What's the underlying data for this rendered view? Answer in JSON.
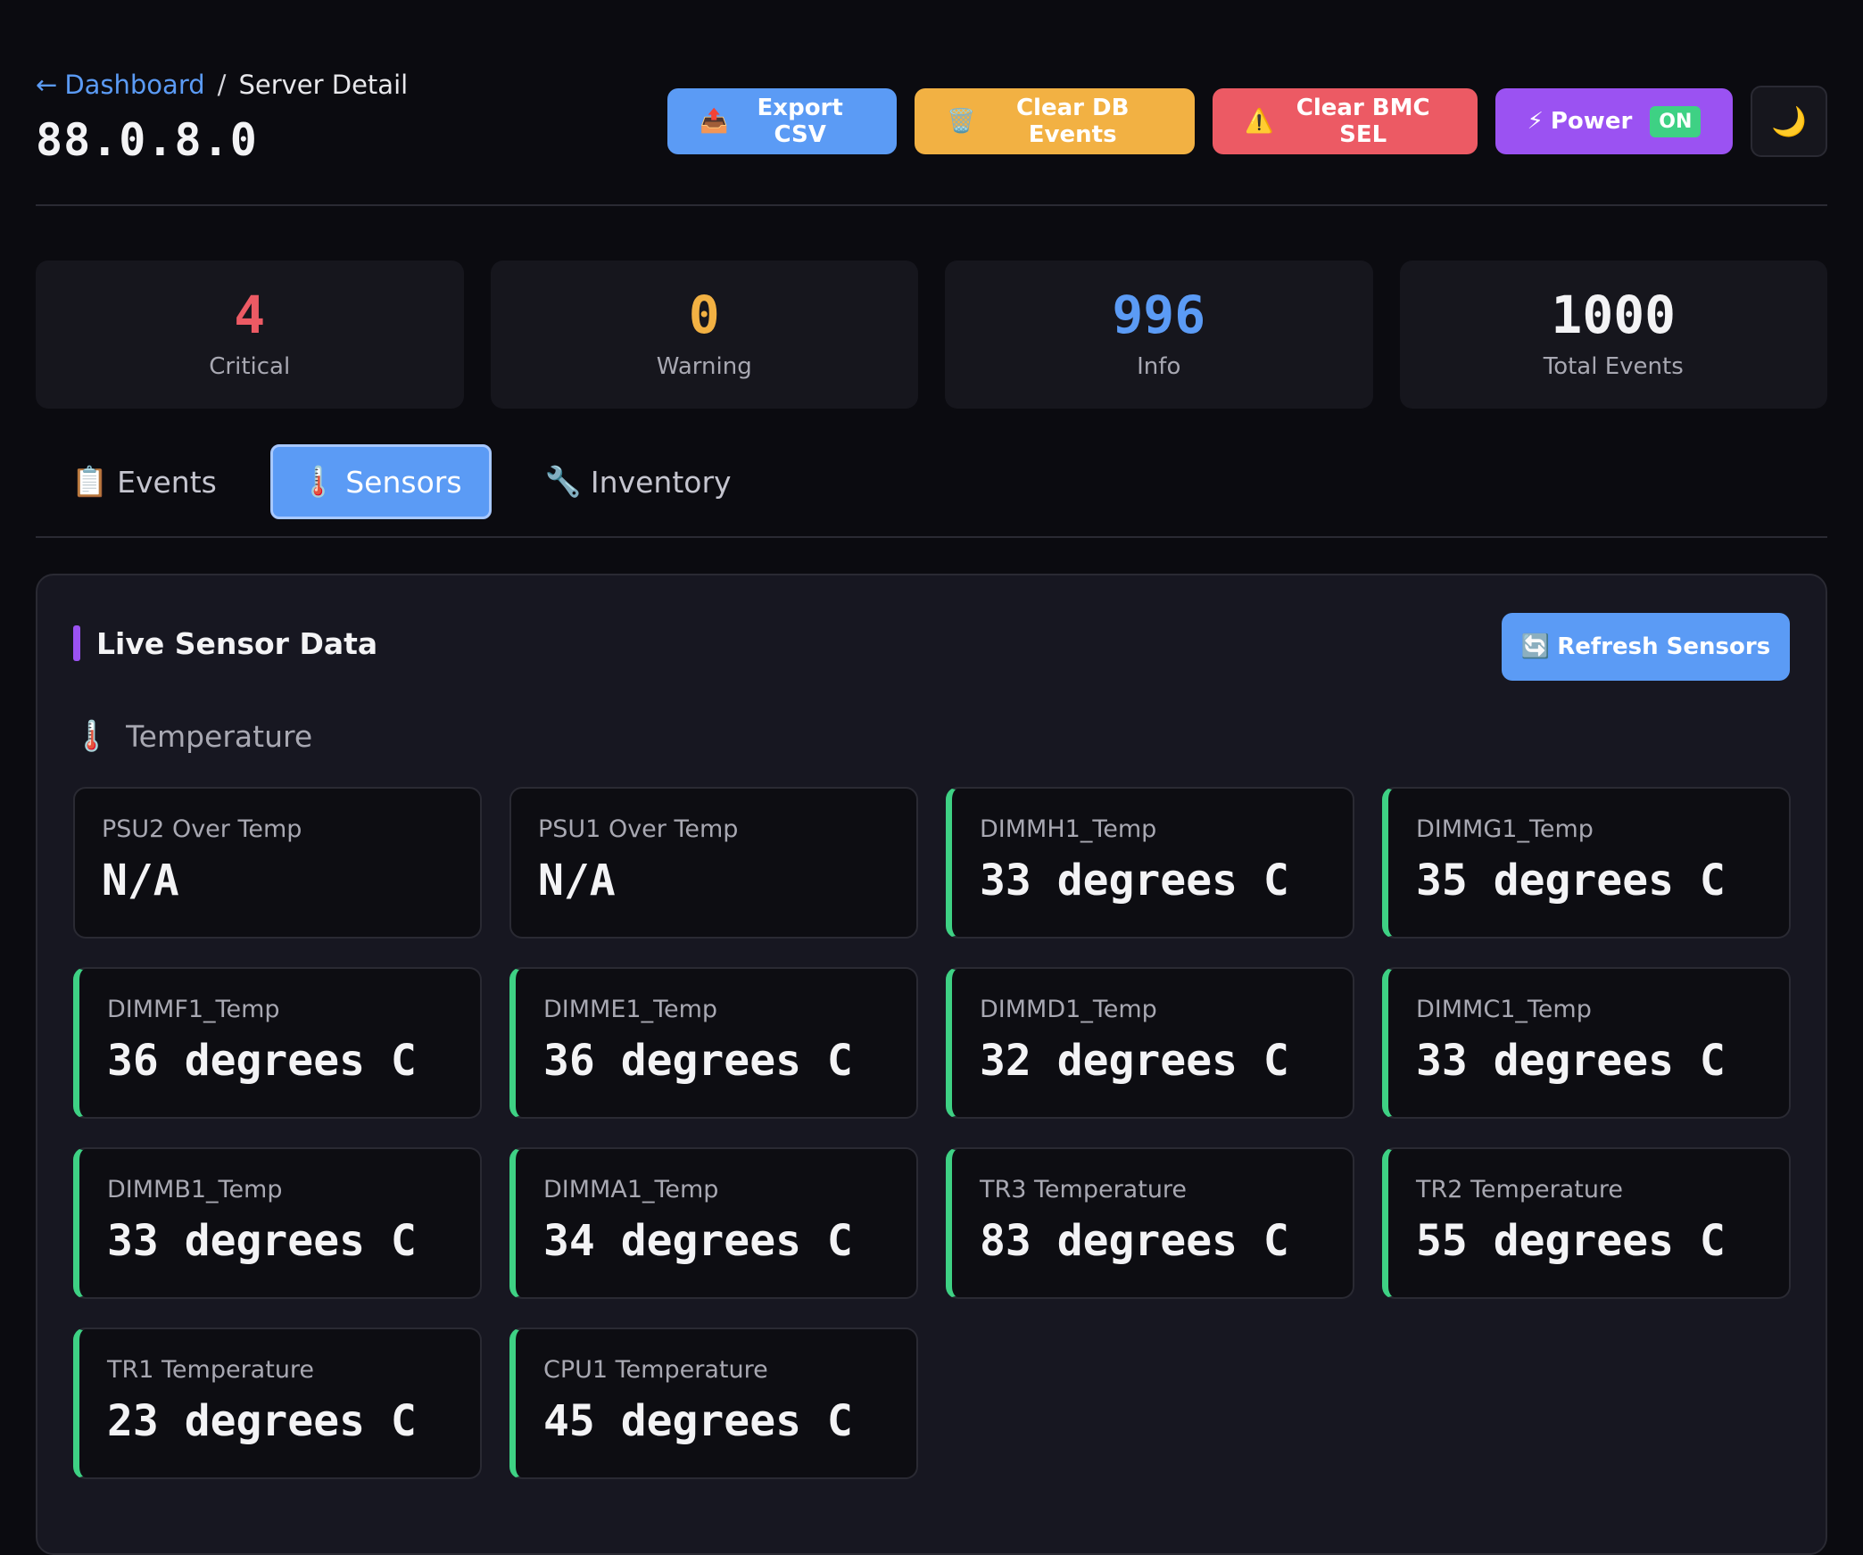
{
  "breadcrumb": {
    "back_icon": "arrow-left-icon",
    "back_arrow": "←",
    "dashboard_label": "Dashboard",
    "separator": "/",
    "current": "Server Detail"
  },
  "page_title": "88.0.8.0",
  "actions": {
    "export_icon": "📤",
    "export_label": "Export CSV",
    "clear_db_icon": "🗑️",
    "clear_db_label": "Clear DB Events",
    "clear_sel_icon": "⚠️",
    "clear_sel_label": "Clear BMC SEL",
    "power_icon": "⚡",
    "power_label": "Power",
    "power_state": "ON",
    "theme_icon": "🌙"
  },
  "stats": [
    {
      "value": "4",
      "label": "Critical",
      "color": "#ec5a64"
    },
    {
      "value": "0",
      "label": "Warning",
      "color": "#f2b143"
    },
    {
      "value": "996",
      "label": "Info",
      "color": "#5b9bf5"
    },
    {
      "value": "1000",
      "label": "Total Events",
      "color": "#f3f3f5"
    }
  ],
  "tabs": [
    {
      "icon": "📋",
      "label": "Events"
    },
    {
      "icon": "🌡️",
      "label": "Sensors"
    },
    {
      "icon": "🔧",
      "label": "Inventory"
    }
  ],
  "panel": {
    "title": "Live Sensor Data",
    "refresh_icon": "🔄",
    "refresh_label": "Refresh Sensors",
    "section_icon": "🌡️",
    "section_label": "Temperature"
  },
  "sensors": [
    {
      "name": "PSU2 Over Temp",
      "value": "N/A"
    },
    {
      "name": "PSU1 Over Temp",
      "value": "N/A"
    },
    {
      "name": "DIMMH1_Temp",
      "value": "33 degrees C"
    },
    {
      "name": "DIMMG1_Temp",
      "value": "35 degrees C"
    },
    {
      "name": "DIMMF1_Temp",
      "value": "36 degrees C"
    },
    {
      "name": "DIMME1_Temp",
      "value": "36 degrees C"
    },
    {
      "name": "DIMMD1_Temp",
      "value": "32 degrees C"
    },
    {
      "name": "DIMMC1_Temp",
      "value": "33 degrees C"
    },
    {
      "name": "DIMMB1_Temp",
      "value": "33 degrees C"
    },
    {
      "name": "DIMMA1_Temp",
      "value": "34 degrees C"
    },
    {
      "name": "TR3 Temperature",
      "value": "83 degrees C"
    },
    {
      "name": "TR2 Temperature",
      "value": "55 degrees C"
    },
    {
      "name": "TR1 Temperature",
      "value": "23 degrees C"
    },
    {
      "name": "CPU1 Temperature",
      "value": "45 degrees C"
    }
  ],
  "colors": {
    "accent_blue": "#5b9bf5",
    "ok_green": "#3ed184",
    "purple": "#9b52f2"
  }
}
